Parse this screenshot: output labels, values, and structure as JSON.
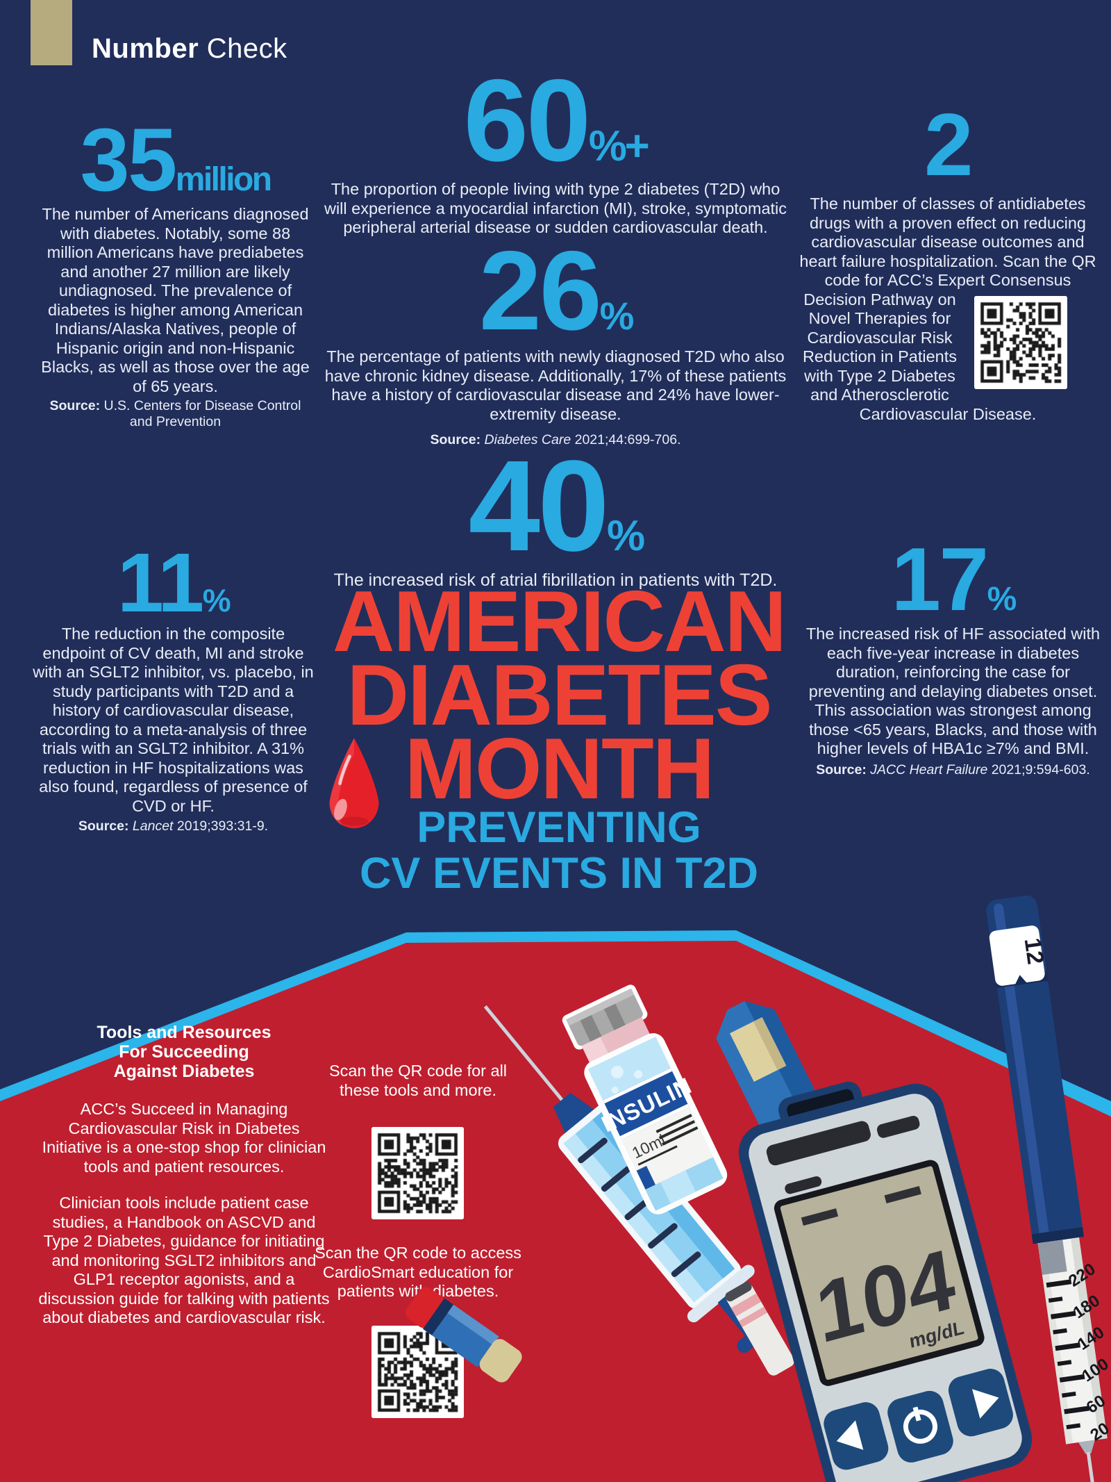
{
  "colors": {
    "navy": "#212e5a",
    "panel_red": "#c01f2f",
    "stripe_cyan": "#2bb5ea",
    "accent_blue": "#29aae1",
    "title_red": "#ee4136",
    "text_light": "#e9edf6",
    "gold": "#b5ab7e",
    "drop_red": "#e62029"
  },
  "header": {
    "brand_bold": "Number",
    "brand_light": " Check"
  },
  "stats": {
    "s35": {
      "value": "35",
      "unit": "million",
      "text": "The number of Americans diagnosed with diabetes. Notably, some 88 million Americans have prediabetes and another 27 million are likely undiagnosed. The prevalence of diabetes is higher among American Indians/Alaska Natives, people of Hispanic origin and non-Hispanic Blacks, as well as those over the age of 65 years.",
      "source_label": "Source:",
      "source_rest": " U.S. Centers for Disease Control and Prevention"
    },
    "s60": {
      "value": "60",
      "unit": "%+",
      "text": "The proportion of people living with type 2 diabetes (T2D) who will experience a myocardial infarction (MI), stroke, symptomatic peripheral arterial disease or sudden cardiovascular death."
    },
    "s2": {
      "value": "2",
      "text_before_qr": "The number of classes of antidiabetes drugs with a proven effect on reducing cardiovascular disease outcomes and heart failure hospitalization. Scan the QR code for ACC’s Expert Consensus ",
      "text_after_qr": "Decision Pathway on Novel Therapies for Cardiovascular Risk Reduction in Patients with Type 2 Diabetes and Atherosclerotic Cardiovascular Disease."
    },
    "s26": {
      "value": "26",
      "unit": "%",
      "text": "The percentage of patients with newly diagnosed T2D who also have chronic kidney disease. Additionally, 17% of these patients have a history of cardiovascular disease and 24% have lower-extremity disease.",
      "source_label": "Source:",
      "source_italic": " Diabetes Care",
      "source_rest": " 2021;44:699-706."
    },
    "s40": {
      "value": "40",
      "unit": "%",
      "text": "The increased risk of atrial fibrillation in patients with T2D."
    },
    "s11": {
      "value": "11",
      "unit": "%",
      "text": "The reduction in the composite endpoint of CV death, MI and stroke with an SGLT2 inhibitor, vs. placebo, in study participants with T2D and a history of cardiovascular disease, according to a meta-analysis of three trials with an SGLT2 inhibitor. A 31% reduction in HF hospitalizations was also found, regardless of presence of CVD or HF.",
      "source_label": "Source:",
      "source_italic": " Lancet",
      "source_rest": " 2019;393:31-9."
    },
    "s17": {
      "value": "17",
      "unit": "%",
      "text": "The increased risk of HF associated with each five-year increase in diabetes duration, reinforcing the case for preventing and delaying diabetes onset. This association was strongest among those <65 years, Blacks, and those with higher levels of HBA1c ≥7% and BMI.",
      "source_label": "Source:",
      "source_italic": " JACC Heart Failure",
      "source_rest": " 2021;9:594-603."
    }
  },
  "title": {
    "line1": "AMERICAN",
    "line2": "DIABETES",
    "line3": "MONTH",
    "sub1": "PREVENTING",
    "sub2": "CV EVENTS IN T2D"
  },
  "tools": {
    "heading_line1": "Tools and Resources",
    "heading_line2": "For Succeeding",
    "heading_line3": "Against Diabetes",
    "para1": "ACC’s Succeed in Managing Cardiovascular Risk in Diabetes Initiative is a one-stop shop for clinician tools and patient resources.",
    "para2": "Clinician tools include patient case studies, a Handbook on ASCVD and Type 2 Diabetes, guidance for initiating and monitoring SGLT2 inhibitors and GLP1 receptor agonists, and a discussion guide for talking with patients about diabetes and cardiovascular risk."
  },
  "qr": {
    "caption1": "Scan the QR code for all these tools and more.",
    "caption2": "Scan the QR code to access CardioSmart education for patients with diabetes."
  },
  "illustration": {
    "vial_label": "INSULIN",
    "vial_volume": "10ml",
    "meter_reading": "104",
    "meter_unit": "mg/dL",
    "pen_window": "12",
    "pen_scale": [
      "220",
      "180",
      "140",
      "100",
      "60",
      "20"
    ]
  }
}
